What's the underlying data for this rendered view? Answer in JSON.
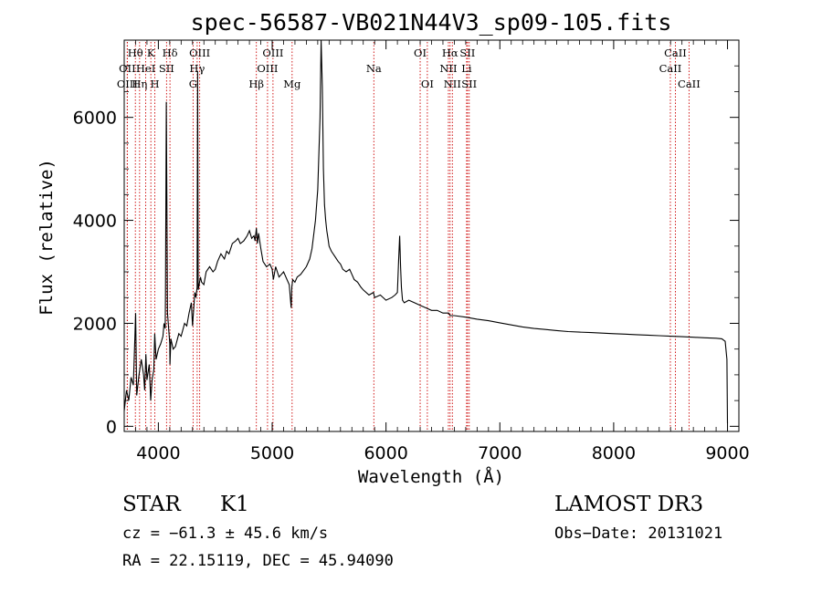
{
  "chart_data": {
    "type": "line",
    "title": "spec-56587-VB021N44V3_sp09-105.fits",
    "xlabel": "Wavelength (Å)",
    "ylabel": "Flux (relative)",
    "xlim": [
      3700,
      9100
    ],
    "ylim": [
      -100,
      7500
    ],
    "grid": false,
    "x_ticks": [
      4000,
      5000,
      6000,
      7000,
      8000,
      9000
    ],
    "x_tick_labels": [
      "4000",
      "5000",
      "6000",
      "7000",
      "8000",
      "9000"
    ],
    "y_ticks": [
      0,
      2000,
      4000,
      6000
    ],
    "y_tick_labels": [
      "0",
      "2000",
      "4000",
      "6000"
    ],
    "series": [
      {
        "name": "spectrum",
        "x": [
          3700,
          3720,
          3740,
          3760,
          3780,
          3795,
          3800,
          3810,
          3830,
          3850,
          3870,
          3880,
          3890,
          3900,
          3920,
          3933,
          3945,
          3960,
          3968,
          3980,
          4000,
          4020,
          4040,
          4050,
          4060,
          4063,
          4070,
          4080,
          4100,
          4102,
          4110,
          4130,
          4150,
          4180,
          4200,
          4230,
          4250,
          4270,
          4290,
          4300,
          4320,
          4330,
          4340,
          4345,
          4350,
          4370,
          4380,
          4400,
          4420,
          4450,
          4480,
          4500,
          4520,
          4550,
          4580,
          4600,
          4620,
          4650,
          4680,
          4700,
          4720,
          4750,
          4780,
          4800,
          4820,
          4840,
          4850,
          4861,
          4870,
          4880,
          4900,
          4920,
          4950,
          4980,
          5000,
          5010,
          5030,
          5060,
          5100,
          5150,
          5167,
          5172,
          5180,
          5200,
          5220,
          5250,
          5300,
          5330,
          5350,
          5380,
          5400,
          5420,
          5430,
          5440,
          5450,
          5460,
          5470,
          5480,
          5490,
          5500,
          5520,
          5550,
          5580,
          5600,
          5620,
          5650,
          5680,
          5700,
          5720,
          5750,
          5780,
          5800,
          5850,
          5890,
          5900,
          5950,
          6000,
          6050,
          6080,
          6100,
          6110,
          6120,
          6128,
          6135,
          6145,
          6160,
          6200,
          6250,
          6300,
          6350,
          6400,
          6450,
          6500,
          6550,
          6563,
          6600,
          6700,
          6800,
          6900,
          7000,
          7100,
          7200,
          7300,
          7400,
          7500,
          7600,
          7700,
          7800,
          7900,
          8000,
          8100,
          8200,
          8300,
          8400,
          8500,
          8600,
          8700,
          8800,
          8900,
          8950,
          8980,
          8995,
          9000
        ],
        "y": [
          300,
          700,
          500,
          950,
          800,
          1800,
          2200,
          600,
          1000,
          1300,
          1000,
          700,
          1400,
          900,
          1200,
          500,
          900,
          1100,
          1800,
          1300,
          1500,
          1600,
          1750,
          2000,
          1900,
          2600,
          6300,
          2200,
          1600,
          1200,
          1700,
          1500,
          1550,
          1800,
          1750,
          2000,
          1950,
          2200,
          2400,
          1950,
          2600,
          2500,
          2700,
          6900,
          2650,
          2900,
          2800,
          2750,
          3000,
          3100,
          3000,
          3050,
          3200,
          3350,
          3250,
          3400,
          3350,
          3550,
          3600,
          3650,
          3550,
          3600,
          3700,
          3800,
          3650,
          3700,
          3600,
          3850,
          3550,
          3750,
          3450,
          3200,
          3100,
          3150,
          3050,
          2850,
          3100,
          2900,
          3000,
          2750,
          2300,
          2700,
          2850,
          2800,
          2900,
          2950,
          3100,
          3250,
          3450,
          4000,
          4600,
          6000,
          7700,
          6600,
          5000,
          4300,
          4000,
          3800,
          3650,
          3500,
          3400,
          3300,
          3200,
          3150,
          3050,
          3000,
          3050,
          2950,
          2850,
          2800,
          2700,
          2650,
          2550,
          2600,
          2500,
          2550,
          2450,
          2500,
          2550,
          2600,
          3200,
          3700,
          3100,
          2700,
          2450,
          2400,
          2450,
          2400,
          2350,
          2300,
          2250,
          2250,
          2200,
          2200,
          2150,
          2150,
          2120,
          2080,
          2050,
          2010,
          1970,
          1930,
          1900,
          1880,
          1860,
          1840,
          1830,
          1820,
          1810,
          1800,
          1790,
          1780,
          1770,
          1760,
          1750,
          1740,
          1730,
          1720,
          1710,
          1700,
          1650,
          1300,
          60
        ]
      }
    ],
    "spectral_lines": [
      {
        "label": "Hθ",
        "wavelength": 3798,
        "row": 1
      },
      {
        "label": "OII",
        "wavelength": 3727,
        "row": 2
      },
      {
        "label": "OIII",
        "wavelength": 3727,
        "row": 3
      },
      {
        "label": "HeI",
        "wavelength": 3889,
        "row": 2
      },
      {
        "label": "Hη",
        "wavelength": 3835,
        "row": 3
      },
      {
        "label": "K",
        "wavelength": 3934,
        "row": 1
      },
      {
        "label": "H",
        "wavelength": 3969,
        "row": 3
      },
      {
        "label": "SII",
        "wavelength": 4072,
        "row": 2
      },
      {
        "label": "Hδ",
        "wavelength": 4102,
        "row": 1
      },
      {
        "label": "OIII",
        "wavelength": 4363,
        "row": 1
      },
      {
        "label": "Hγ",
        "wavelength": 4341,
        "row": 2
      },
      {
        "label": "G",
        "wavelength": 4305,
        "row": 3
      },
      {
        "label": "Hβ",
        "wavelength": 4861,
        "row": 3
      },
      {
        "label": "OIII",
        "wavelength": 5007,
        "row": 1
      },
      {
        "label": "OIII",
        "wavelength": 4959,
        "row": 2
      },
      {
        "label": "Mg",
        "wavelength": 5175,
        "row": 3
      },
      {
        "label": "Na",
        "wavelength": 5893,
        "row": 2
      },
      {
        "label": "OI",
        "wavelength": 6300,
        "row": 1
      },
      {
        "label": "OI",
        "wavelength": 6363,
        "row": 3
      },
      {
        "label": "Hα",
        "wavelength": 6563,
        "row": 1
      },
      {
        "label": "SII",
        "wavelength": 6716,
        "row": 1
      },
      {
        "label": "NII",
        "wavelength": 6548,
        "row": 2
      },
      {
        "label": "Li",
        "wavelength": 6708,
        "row": 2
      },
      {
        "label": "NII",
        "wavelength": 6583,
        "row": 3
      },
      {
        "label": "SII",
        "wavelength": 6731,
        "row": 3
      },
      {
        "label": "CaII",
        "wavelength": 8542,
        "row": 1
      },
      {
        "label": "CaII",
        "wavelength": 8498,
        "row": 2
      },
      {
        "label": "CaII",
        "wavelength": 8662,
        "row": 3
      }
    ]
  },
  "info": {
    "class": "STAR",
    "subclass": "K1",
    "survey": "LAMOST DR3",
    "cz": "cz = −61.3 ± 45.6 km/s",
    "obs_date": "Obs−Date: 20131021",
    "coords": "RA =  22.15119, DEC =  45.94090"
  },
  "colors": {
    "line": "#000000",
    "marker": "#cc0000",
    "axis": "#000000"
  }
}
